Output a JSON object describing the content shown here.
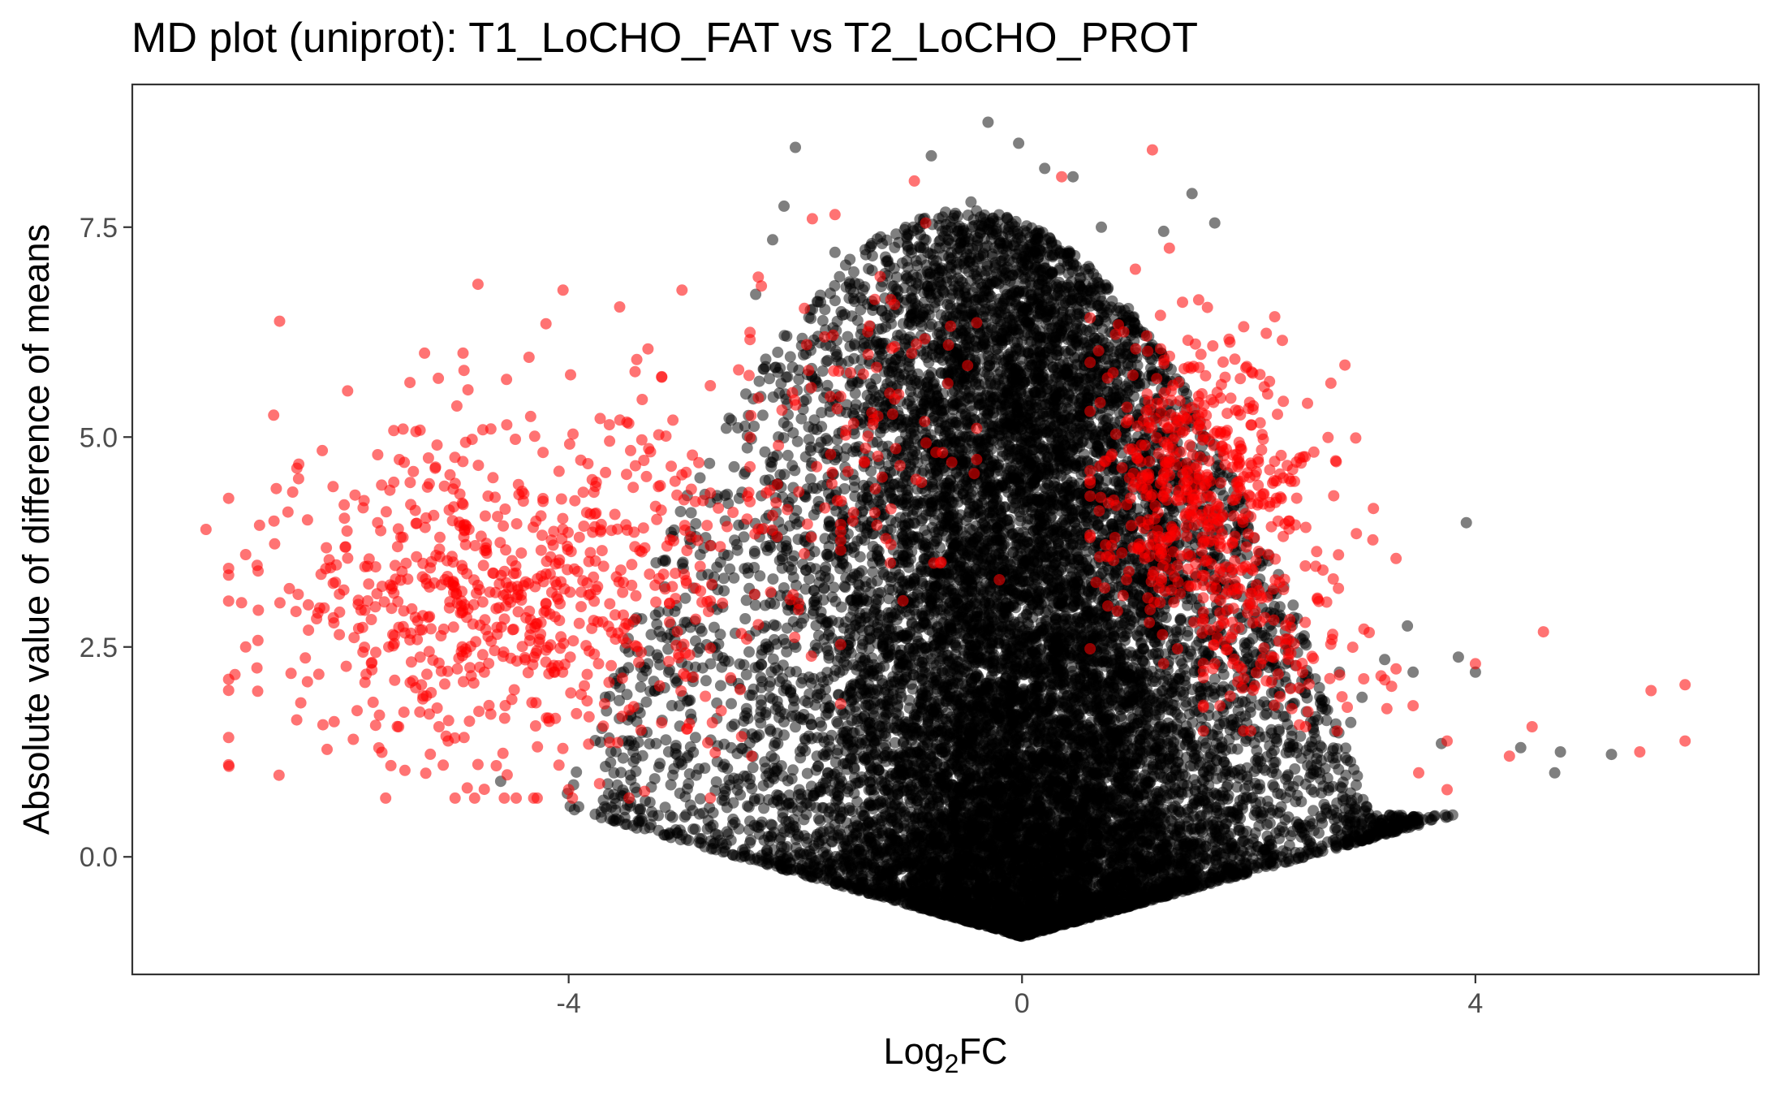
{
  "chart_data": {
    "type": "scatter",
    "title": "MD plot (uniprot): T1_LoCHO_FAT vs T2_LoCHO_PROT",
    "xlabel": {
      "prefix": "Log",
      "subscript": "2",
      "suffix": "FC"
    },
    "ylabel": "Absolute value of difference of means",
    "xlim": [
      -7.85,
      6.5
    ],
    "ylim": [
      -1.4,
      9.2
    ],
    "x_ticks": [
      {
        "value": -4,
        "label": "-4"
      },
      {
        "value": 0,
        "label": "0"
      },
      {
        "value": 4,
        "label": "4"
      }
    ],
    "y_ticks": [
      {
        "value": 0,
        "label": "0.0"
      },
      {
        "value": 2.5,
        "label": "2.5"
      },
      {
        "value": 5,
        "label": "5.0"
      },
      {
        "value": 7.5,
        "label": "7.5"
      }
    ],
    "grid": false,
    "legend": "none",
    "series": [
      {
        "color": "#000000",
        "opacity": 0.5,
        "points": [
          [
            -0.3,
            8.75
          ],
          [
            -0.03,
            8.5
          ],
          [
            0.2,
            8.2
          ],
          [
            0.45,
            8.1
          ],
          [
            -2.0,
            8.45
          ],
          [
            -0.8,
            8.35
          ],
          [
            1.5,
            7.9
          ],
          [
            -0.45,
            7.8
          ],
          [
            -2.1,
            7.75
          ],
          [
            1.7,
            7.55
          ],
          [
            -2.2,
            7.35
          ],
          [
            0.7,
            7.5
          ],
          [
            1.25,
            7.45
          ],
          [
            -1.65,
            7.2
          ],
          [
            -0.2,
            7.3
          ],
          [
            -2.35,
            6.7
          ],
          [
            -1.8,
            6.2
          ],
          [
            3.92,
            3.98
          ],
          [
            3.85,
            2.38
          ],
          [
            4.0,
            2.2
          ],
          [
            4.4,
            1.3
          ],
          [
            4.75,
            1.25
          ],
          [
            4.7,
            1.0
          ],
          [
            5.2,
            1.22
          ],
          [
            3.7,
            1.35
          ],
          [
            3.2,
            2.35
          ],
          [
            3.45,
            2.2
          ],
          [
            3.0,
            1.9
          ],
          [
            3.4,
            2.75
          ],
          [
            -3.3,
            2.3
          ],
          [
            -3.6,
            1.0
          ],
          [
            -4.6,
            0.9
          ],
          [
            -2.3,
            4.3
          ],
          [
            -2.5,
            3.95
          ],
          [
            -2.1,
            1.45
          ],
          [
            1.0,
            3.55
          ],
          [
            2.2,
            2.4
          ],
          [
            2.8,
            2.2
          ],
          [
            2.9,
            1.6
          ],
          [
            2.6,
            1.1
          ]
        ],
        "envelope": {
          "points": 14000,
          "x_center": 0,
          "y_floor": -0.95,
          "floor_slope": 0.38,
          "ymax": 7.2,
          "peak_center": -0.5,
          "peak_width_left": 3.3,
          "peak_width_right": 3.3
        }
      },
      {
        "color": "#ff0000",
        "opacity": 0.55,
        "points": [
          [
            -7.2,
            3.9
          ],
          [
            -6.85,
            3.6
          ],
          [
            -6.6,
            4.0
          ],
          [
            -6.55,
            6.38
          ],
          [
            -5.95,
            5.55
          ],
          [
            -5.4,
            5.65
          ],
          [
            -4.8,
            6.82
          ],
          [
            -4.05,
            6.75
          ],
          [
            -3.55,
            6.55
          ],
          [
            -3.0,
            6.75
          ],
          [
            -4.2,
            6.35
          ],
          [
            -4.35,
            5.95
          ],
          [
            -5.15,
            5.7
          ],
          [
            -3.3,
            6.05
          ],
          [
            -1.85,
            7.6
          ],
          [
            -1.65,
            7.65
          ],
          [
            -2.3,
            6.8
          ],
          [
            -0.95,
            8.05
          ],
          [
            -0.85,
            7.55
          ],
          [
            0.35,
            8.1
          ],
          [
            1.15,
            8.42
          ],
          [
            1.3,
            7.25
          ],
          [
            1.0,
            7.0
          ],
          [
            5.45,
            1.25
          ],
          [
            5.85,
            1.38
          ],
          [
            5.85,
            2.05
          ],
          [
            5.55,
            1.98
          ],
          [
            4.6,
            2.68
          ],
          [
            3.75,
            1.38
          ],
          [
            4.0,
            2.3
          ],
          [
            3.45,
            1.8
          ],
          [
            3.5,
            1.0
          ],
          [
            3.75,
            0.8
          ],
          [
            4.3,
            1.2
          ],
          [
            4.5,
            1.55
          ],
          [
            2.95,
            3.85
          ],
          [
            3.1,
            4.15
          ],
          [
            2.75,
            4.3
          ],
          [
            2.45,
            4.75
          ],
          [
            -6.85,
            2.5
          ],
          [
            -6.75,
            2.25
          ],
          [
            -5.5,
            1.55
          ],
          [
            -5.9,
            1.4
          ],
          [
            -4.8,
            1.1
          ],
          [
            -4.0,
            0.8
          ],
          [
            -0.2,
            3.3
          ],
          [
            -1.05,
            3.05
          ],
          [
            -1.4,
            5.75
          ],
          [
            -1.9,
            6.1
          ],
          [
            -2.5,
            5.8
          ]
        ],
        "clusters": [
          {
            "n": 620,
            "cx": -4.75,
            "cy": 3.0,
            "sx": 0.95,
            "sy": 1.05,
            "xmin": -7.0,
            "xmax": -2.75,
            "ymin": 0.7,
            "ymax": 6.0
          },
          {
            "n": 130,
            "cx": -2.9,
            "cy": 3.6,
            "sx": 0.85,
            "sy": 0.95,
            "xmin": -4.2,
            "xmax": -1.6,
            "ymin": 1.2,
            "ymax": 6.0
          },
          {
            "n": 520,
            "cx": 1.55,
            "cy": 4.4,
            "sx": 0.5,
            "sy": 0.9,
            "xmin": 0.6,
            "xmax": 3.1,
            "ymin": 2.3,
            "ymax": 7.0
          },
          {
            "n": 90,
            "cx": -1.3,
            "cy": 5.2,
            "sx": 0.6,
            "sy": 0.9,
            "xmin": -2.4,
            "xmax": -0.4,
            "ymin": 3.5,
            "ymax": 7.0
          },
          {
            "n": 110,
            "cx": 2.25,
            "cy": 2.6,
            "sx": 0.45,
            "sy": 0.6,
            "xmin": 1.6,
            "xmax": 3.3,
            "ymin": 1.5,
            "ymax": 4.0
          }
        ]
      }
    ]
  }
}
